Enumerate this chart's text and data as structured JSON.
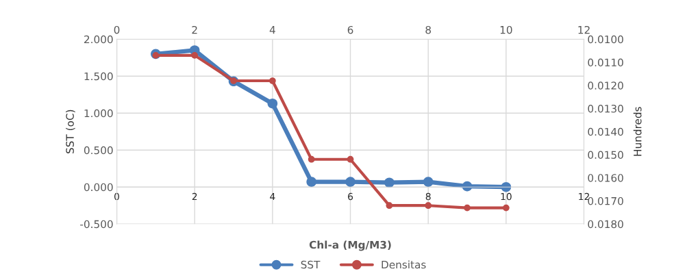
{
  "chart_data": {
    "type": "line",
    "xlabel": "Chl-a (Mg/M3)",
    "ylabel": "SST (oC)",
    "y2label": "Hundreds",
    "x": [
      1,
      2,
      3,
      4,
      5,
      6,
      7,
      8,
      9,
      10
    ],
    "series": [
      {
        "name": "SST",
        "color": "#4a7ebb",
        "values": [
          1.8,
          1.85,
          1.43,
          1.13,
          0.07,
          0.07,
          0.06,
          0.07,
          0.01,
          0.0
        ]
      },
      {
        "name": "Densitas",
        "color": "#be4b48",
        "axis": "y2",
        "values": [
          0.0107,
          0.0107,
          0.0118,
          0.0118,
          0.0152,
          0.0152,
          0.0172,
          0.0172,
          0.0173,
          0.0173
        ]
      }
    ],
    "xlim": [
      0,
      12
    ],
    "xticks": [
      0,
      2,
      4,
      6,
      8,
      10,
      12
    ],
    "x2lim": [
      0,
      12
    ],
    "x2ticks": [
      0,
      2,
      4,
      6,
      8,
      10,
      12
    ],
    "ylim": [
      -0.5,
      2.0
    ],
    "yticks": [
      {
        "value": -0.5,
        "label": "-0.500"
      },
      {
        "value": 0,
        "label": "0.000"
      },
      {
        "value": 0.5,
        "label": "0.500"
      },
      {
        "value": 1.0,
        "label": "1.000"
      },
      {
        "value": 1.5,
        "label": "1.500"
      },
      {
        "value": 2.0,
        "label": "2.000"
      }
    ],
    "y2lim": [
      0.018,
      0.01
    ],
    "y2ticks": [
      {
        "value": 0.01,
        "label": "0.0100"
      },
      {
        "value": 0.011,
        "label": "0.0110"
      },
      {
        "value": 0.012,
        "label": "0.0120"
      },
      {
        "value": 0.013,
        "label": "0.0130"
      },
      {
        "value": 0.014,
        "label": "0.0140"
      },
      {
        "value": 0.015,
        "label": "0.0150"
      },
      {
        "value": 0.016,
        "label": "0.0160"
      },
      {
        "value": 0.017,
        "label": "0.0170"
      },
      {
        "value": 0.018,
        "label": "0.0180"
      }
    ],
    "grid": true,
    "legend": "bottom",
    "marker": "circle",
    "line_style": "solid"
  }
}
